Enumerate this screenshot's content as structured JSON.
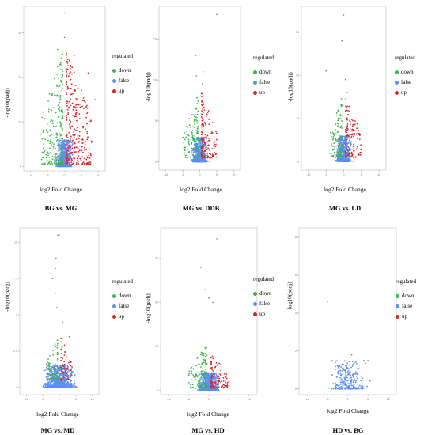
{
  "colors": {
    "down": "#3cb44b",
    "false": "#5b8ff0",
    "up": "#d62728",
    "axis": "#bdbdbd"
  },
  "chart_data": [
    {
      "type": "scatter",
      "caption": "BG vs. MG",
      "xlabel": "log2 Fold Change",
      "ylabel": "-log10(padj)",
      "xlim": [
        -12,
        12
      ],
      "ylim": [
        -1,
        36
      ],
      "xticks": [
        -10,
        -5,
        0,
        5,
        10
      ],
      "yticks": [
        0,
        10,
        20,
        30
      ],
      "legend": {
        "title": "regulated",
        "entries": [
          "down",
          "false",
          "up"
        ],
        "position": "right"
      },
      "series": [
        {
          "name": "down",
          "spread": [
            -7,
            -0.5
          ],
          "ymax": 26,
          "count": 220
        },
        {
          "name": "false",
          "spread": [
            -3,
            3
          ],
          "ymax": 6,
          "count": 700
        },
        {
          "name": "up",
          "spread": [
            0.5,
            8
          ],
          "ymax": 26,
          "count": 280
        }
      ],
      "outliers": [
        [
          0,
          34.5
        ],
        [
          0,
          29
        ],
        [
          -2,
          26.3
        ],
        [
          3,
          25
        ],
        [
          7,
          21
        ],
        [
          9,
          15
        ]
      ]
    },
    {
      "type": "scatter",
      "caption": "MG vs. DDB",
      "xlabel": "log2 Fold Change",
      "ylabel": "-log10(padj)",
      "xlim": [
        -12,
        12
      ],
      "ylim": [
        -1,
        19
      ],
      "xticks": [
        -10,
        -5,
        0,
        5,
        10
      ],
      "yticks": [
        0,
        5,
        10,
        15
      ],
      "legend": {
        "title": "regulated",
        "entries": [
          "down",
          "false",
          "up"
        ],
        "position": "right"
      },
      "series": [
        {
          "name": "down",
          "spread": [
            -5,
            -0.5
          ],
          "ymax": 8,
          "count": 110
        },
        {
          "name": "false",
          "spread": [
            -3,
            3
          ],
          "ymax": 3,
          "count": 650
        },
        {
          "name": "up",
          "spread": [
            0.5,
            5
          ],
          "ymax": 8,
          "count": 140
        }
      ],
      "outliers": [
        [
          5,
          18
        ],
        [
          -1.2,
          13
        ],
        [
          1,
          11
        ],
        [
          -1,
          10.5
        ],
        [
          0.8,
          9.5
        ]
      ]
    },
    {
      "type": "scatter",
      "caption": "MG vs. LD",
      "xlabel": "log2 Fold Change",
      "ylabel": "-log10(padj)",
      "xlim": [
        -12,
        12
      ],
      "ylim": [
        -1,
        18
      ],
      "xticks": [
        -10,
        -5,
        0,
        5,
        10
      ],
      "yticks": [
        0,
        5,
        10,
        15
      ],
      "legend": {
        "title": "regulated",
        "entries": [
          "down",
          "false",
          "up"
        ],
        "position": "right"
      },
      "series": [
        {
          "name": "down",
          "spread": [
            -4,
            -0.5
          ],
          "ymax": 7,
          "count": 100
        },
        {
          "name": "false",
          "spread": [
            -3,
            3
          ],
          "ymax": 3,
          "count": 600
        },
        {
          "name": "up",
          "spread": [
            0.5,
            5
          ],
          "ymax": 7,
          "count": 130
        }
      ],
      "outliers": [
        [
          0,
          17
        ],
        [
          -0.5,
          14
        ],
        [
          -5,
          10.5
        ],
        [
          0.5,
          9.5
        ],
        [
          1,
          8
        ]
      ]
    },
    {
      "type": "scatter",
      "caption": "MG vs. MD",
      "xlabel": "log2 Fold Change",
      "ylabel": "-log10(padj)",
      "xlim": [
        -12,
        12
      ],
      "ylim": [
        -0.5,
        11
      ],
      "xticks": [
        -10,
        -5,
        0,
        5,
        10
      ],
      "yticks": [
        0,
        2.5,
        5,
        7.5,
        10
      ],
      "legend": {
        "title": "regulated",
        "entries": [
          "down",
          "false",
          "up"
        ],
        "position": "right"
      },
      "series": [
        {
          "name": "down",
          "spread": [
            -4,
            -0.5
          ],
          "ymax": 3,
          "count": 60
        },
        {
          "name": "false",
          "spread": [
            -6,
            6
          ],
          "ymax": 1.5,
          "count": 900
        },
        {
          "name": "up",
          "spread": [
            0.5,
            4
          ],
          "ymax": 3,
          "count": 60
        }
      ],
      "outliers": [
        [
          -0.5,
          10.5
        ],
        [
          0,
          10.5
        ],
        [
          -1,
          8.9
        ],
        [
          -1.2,
          8.2
        ],
        [
          -2,
          7.5
        ],
        [
          -1,
          6.5
        ],
        [
          -0.8,
          5.5
        ],
        [
          1,
          4.5
        ],
        [
          3,
          3.5
        ]
      ]
    },
    {
      "type": "scatter",
      "caption": "MG vs. HD",
      "xlabel": "log2 Fold Change",
      "ylabel": "-log10(padj)",
      "xlim": [
        -12,
        12
      ],
      "ylim": [
        -1,
        37
      ],
      "xticks": [
        -10,
        -5,
        0,
        5,
        10
      ],
      "yticks": [
        0,
        10,
        20,
        30
      ],
      "legend": {
        "title": "regulated",
        "entries": [
          "down",
          "false",
          "up"
        ],
        "position": "right"
      },
      "series": [
        {
          "name": "down",
          "spread": [
            -5,
            -0.5
          ],
          "ymax": 10,
          "count": 120
        },
        {
          "name": "false",
          "spread": [
            -3,
            3
          ],
          "ymax": 4,
          "count": 650
        },
        {
          "name": "up",
          "spread": [
            0.5,
            5
          ],
          "ymax": 8,
          "count": 110
        }
      ],
      "outliers": [
        [
          2,
          34.5
        ],
        [
          -2,
          28
        ],
        [
          -1,
          23
        ],
        [
          0,
          21
        ],
        [
          1,
          20
        ]
      ]
    },
    {
      "type": "scatter",
      "caption": "HD vs. BG",
      "xlabel": "log2 Fold Change",
      "ylabel": "-log10(padj)",
      "xlim": [
        -12,
        12
      ],
      "ylim": [
        -0.3,
        8.5
      ],
      "xticks": [
        -10,
        -5,
        0,
        5,
        10
      ],
      "yticks": [
        0,
        2,
        4,
        6,
        8
      ],
      "legend": {
        "title": "regulated",
        "entries": [
          "down",
          "false",
          "up"
        ],
        "position": "right"
      },
      "series": [
        {
          "name": "down",
          "spread": [
            -1,
            -0.5
          ],
          "ymax": 0,
          "count": 0
        },
        {
          "name": "false",
          "spread": [
            -6,
            6
          ],
          "ymax": 1.5,
          "count": 260
        },
        {
          "name": "up",
          "spread": [
            0.5,
            1
          ],
          "ymax": 0,
          "count": 0
        }
      ],
      "outliers": [
        [
          -5,
          4.6
        ],
        [
          1,
          1.8
        ],
        [
          4,
          1.5
        ],
        [
          5,
          1.5
        ],
        [
          -2,
          1.2
        ],
        [
          0,
          1.1
        ]
      ]
    }
  ]
}
